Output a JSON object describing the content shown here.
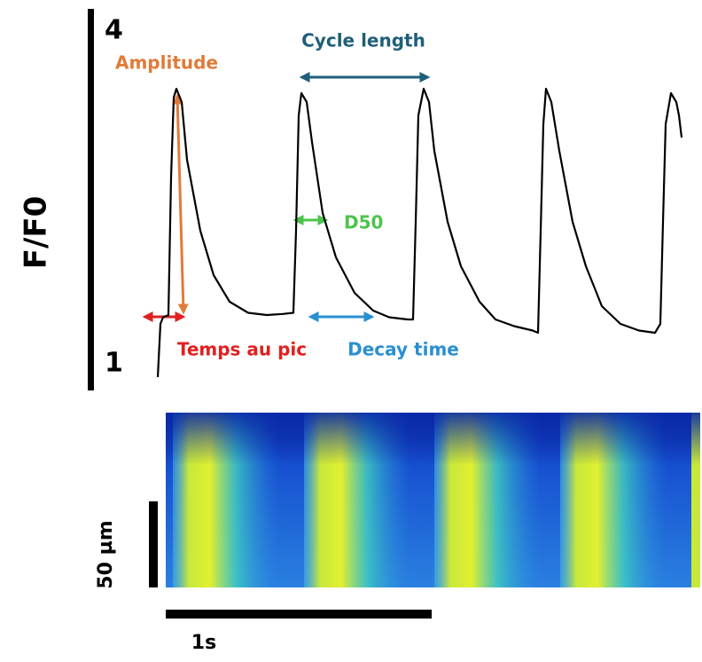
{
  "chart_data": {
    "type": "line",
    "y_label": "F/F0",
    "color": "#000000",
    "x": [
      0,
      0.01,
      0.02,
      0.04,
      0.05,
      0.06,
      0.07,
      0.09,
      0.11,
      0.16,
      0.21,
      0.27,
      0.34,
      0.41,
      0.47,
      0.51,
      0.52,
      0.53,
      0.54,
      0.56,
      0.58,
      0.62,
      0.67,
      0.74,
      0.81,
      0.87,
      0.94,
      0.96,
      0.97,
      0.98,
      1.0,
      1.02,
      1.04,
      1.09,
      1.14,
      1.21,
      1.27,
      1.34,
      1.41,
      1.43,
      1.44,
      1.45,
      1.46,
      1.48,
      1.51,
      1.56,
      1.61,
      1.67,
      1.74,
      1.81,
      1.87,
      1.89,
      1.9,
      1.91,
      1.93,
      1.95,
      1.96,
      1.97
    ],
    "values": [
      0.88,
      1.36,
      1.42,
      1.44,
      2.68,
      3.4,
      3.48,
      3.36,
      2.84,
      2.2,
      1.8,
      1.56,
      1.46,
      1.44,
      1.45,
      1.46,
      2.2,
      3.24,
      3.44,
      3.36,
      3.0,
      2.36,
      1.96,
      1.64,
      1.48,
      1.42,
      1.4,
      1.4,
      2.28,
      3.24,
      3.48,
      3.36,
      2.92,
      2.28,
      1.88,
      1.56,
      1.4,
      1.34,
      1.3,
      1.28,
      2.2,
      3.16,
      3.48,
      3.36,
      2.92,
      2.28,
      1.88,
      1.52,
      1.36,
      1.3,
      1.28,
      1.36,
      2.28,
      3.16,
      3.44,
      3.36,
      3.24,
      3.04
    ],
    "xlim": [
      0,
      2
    ],
    "ylim": [
      1,
      4
    ],
    "yticks": [
      1,
      4
    ],
    "annotations": {
      "amplitude": "Amplitude",
      "cycle_length": "Cycle length",
      "d50": "D50",
      "time_to_peak": "Temps au pic",
      "decay_time": "Decay time"
    },
    "scale_bars": {
      "space": "50 µm",
      "time": "1s"
    }
  }
}
